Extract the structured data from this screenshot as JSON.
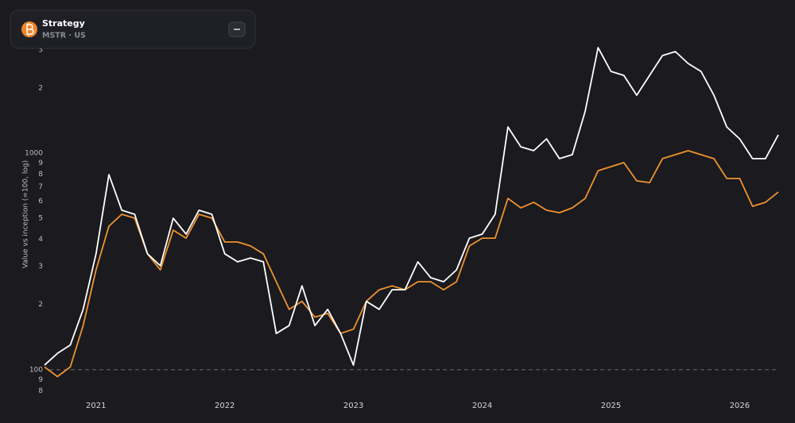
{
  "header": {
    "title": "Strategy",
    "subtitle": "MSTR · US"
  },
  "chart_data": {
    "type": "line",
    "y_label": "Value vs inception (=100, log)",
    "log_scale": true,
    "reference_line": 100,
    "x": [
      2020.6,
      2020.7,
      2020.8,
      2020.9,
      2021.0,
      2021.1,
      2021.2,
      2021.3,
      2021.4,
      2021.5,
      2021.6,
      2021.7,
      2021.8,
      2021.9,
      2022.0,
      2022.1,
      2022.2,
      2022.3,
      2022.4,
      2022.5,
      2022.6,
      2022.7,
      2022.8,
      2022.9,
      2023.0,
      2023.1,
      2023.2,
      2023.3,
      2023.4,
      2023.5,
      2023.6,
      2023.7,
      2023.8,
      2023.9,
      2024.0,
      2024.1,
      2024.2,
      2024.3,
      2024.4,
      2024.5,
      2024.6,
      2024.7,
      2024.8,
      2024.9,
      2025.0,
      2025.1,
      2025.2,
      2025.3,
      2025.4,
      2025.5,
      2025.6,
      2025.7,
      2025.8,
      2025.9,
      2026.0,
      2026.1,
      2026.2,
      2026.3
    ],
    "xlim": [
      2020.6,
      2026.3
    ],
    "xticks": [
      2021,
      2022,
      2023,
      2024,
      2025,
      2026
    ],
    "ylim": [
      75,
      3500
    ],
    "yticks": [
      {
        "value": 80,
        "label": "8"
      },
      {
        "value": 90,
        "label": "9"
      },
      100,
      {
        "value": 200,
        "label": "2"
      },
      {
        "value": 300,
        "label": "3"
      },
      {
        "value": 400,
        "label": "4"
      },
      {
        "value": 500,
        "label": "5"
      },
      {
        "value": 600,
        "label": "6"
      },
      {
        "value": 700,
        "label": "7"
      },
      {
        "value": 800,
        "label": "8"
      },
      {
        "value": 900,
        "label": "9"
      },
      1000,
      {
        "value": 2000,
        "label": "2"
      },
      {
        "value": 3000,
        "label": "3"
      }
    ],
    "series": [
      {
        "color": "#ffffff",
        "values": [
          105,
          119,
          130,
          190,
          343,
          796,
          545,
          522,
          343,
          302,
          501,
          423,
          545,
          522,
          343,
          315,
          328,
          315,
          147,
          160,
          244,
          160,
          190,
          147,
          105,
          207,
          190,
          234,
          234,
          315,
          266,
          255,
          289,
          405,
          423,
          522,
          1321,
          1070,
          1026,
          1164,
          943,
          984,
          1563,
          3070,
          2384,
          2286,
          1851,
          2286,
          2823,
          2944,
          2594,
          2384,
          1851,
          1321,
          1164,
          943,
          943,
          1215
        ]
      },
      {
        "color": "#f0922e",
        "values": [
          103,
          93,
          103,
          160,
          289,
          460,
          522,
          501,
          343,
          289,
          441,
          405,
          522,
          501,
          389,
          389,
          373,
          343,
          255,
          190,
          207,
          175,
          182,
          147,
          154,
          207,
          234,
          244,
          234,
          255,
          255,
          234,
          255,
          373,
          405,
          405,
          618,
          559,
          593,
          545,
          531,
          559,
          618,
          830,
          866,
          904,
          745,
          731,
          943,
          984,
          1026,
          984,
          943,
          764,
          764,
          568,
          593,
          662
        ]
      }
    ]
  }
}
